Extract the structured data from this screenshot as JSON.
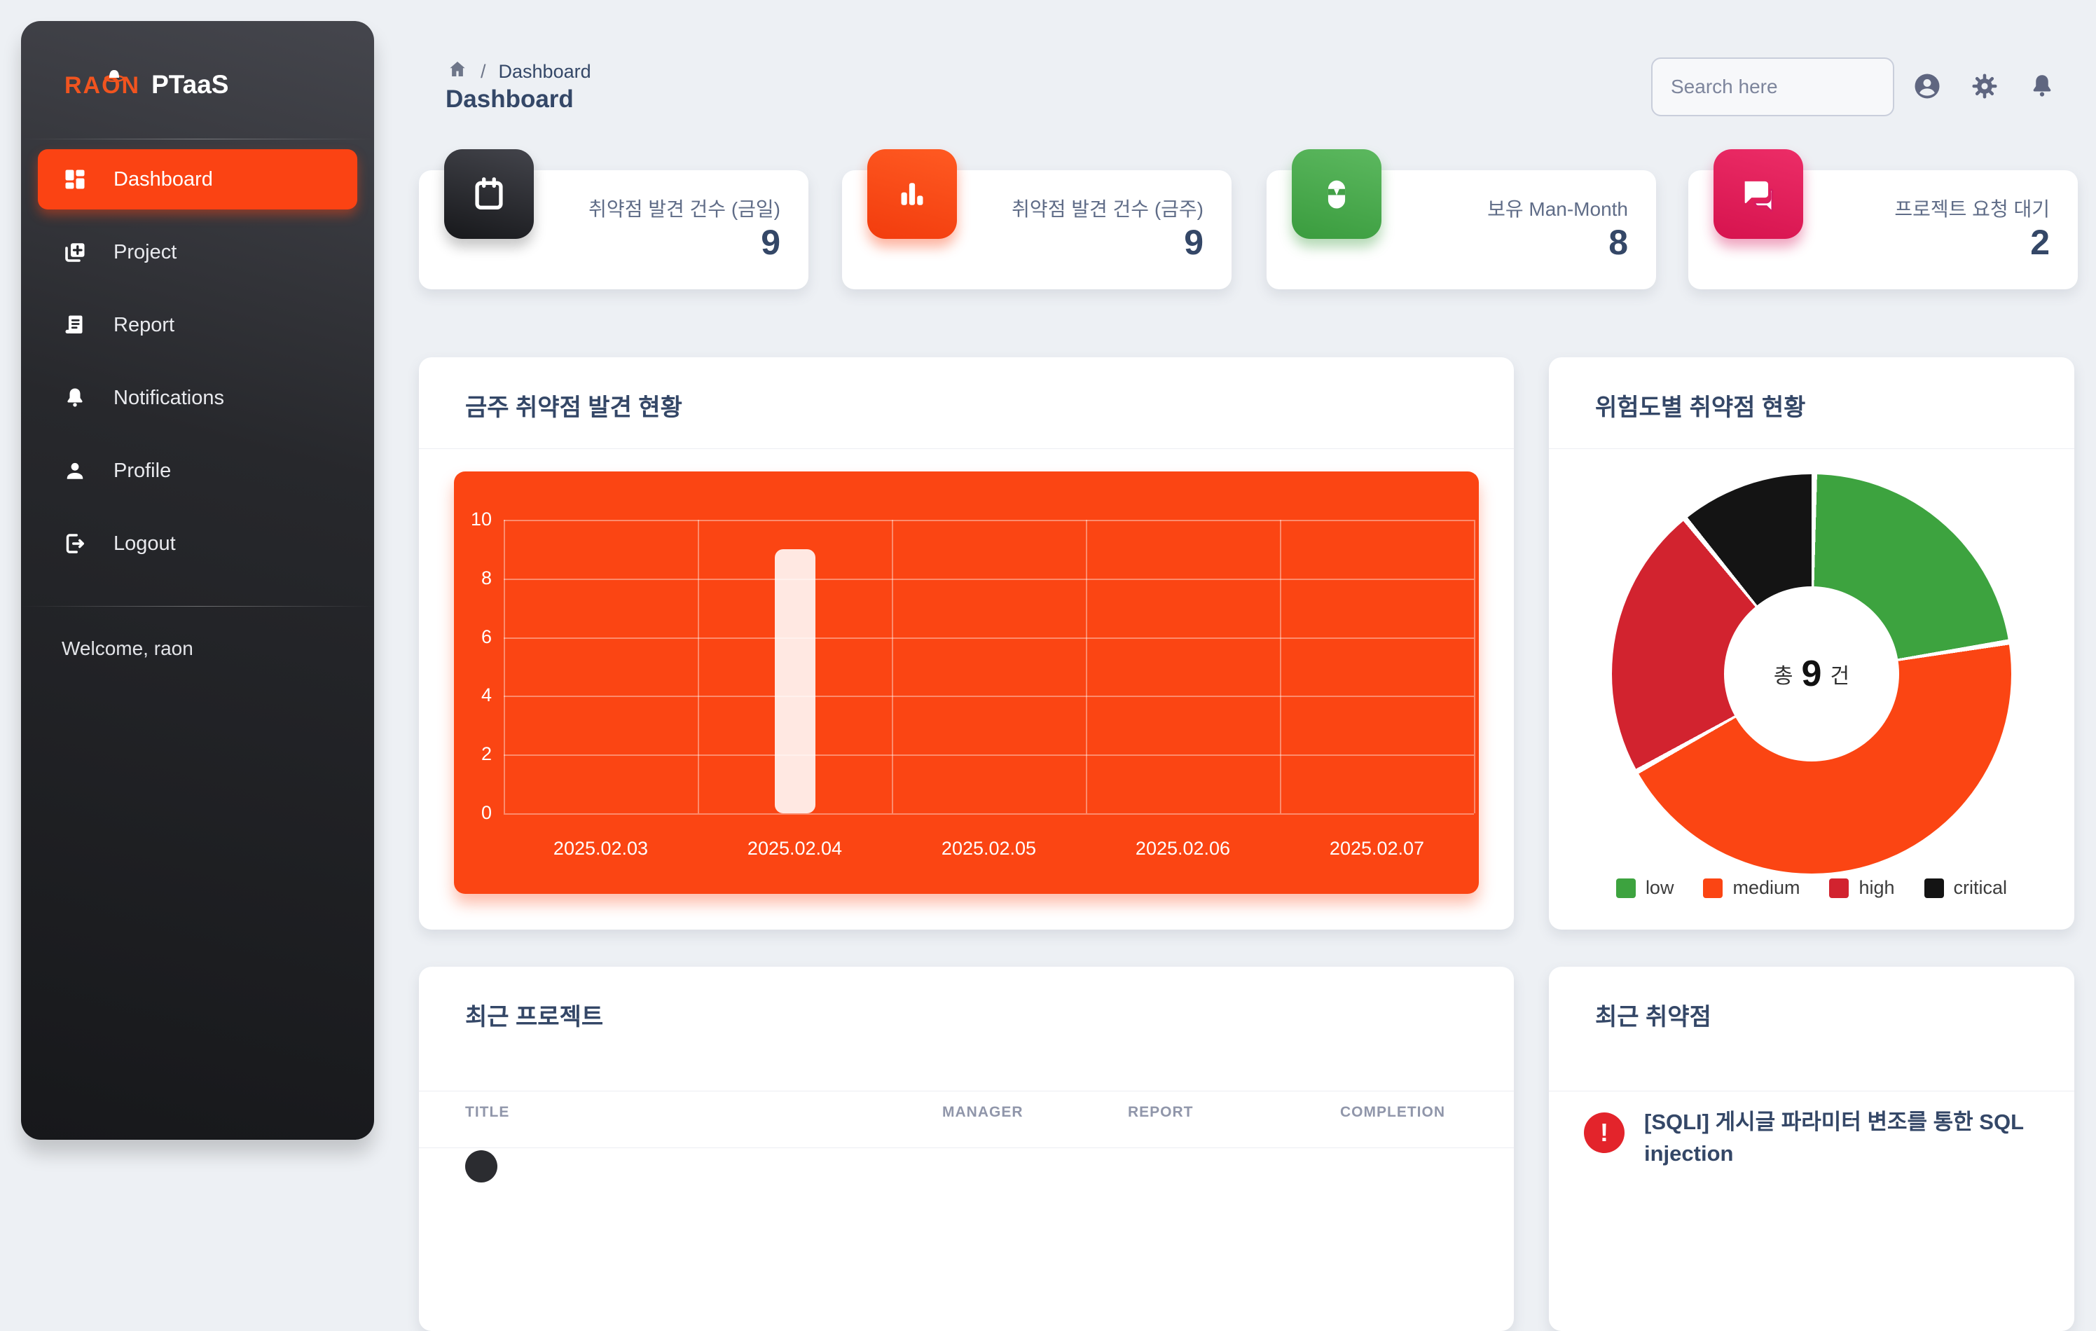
{
  "app": {
    "brand": "RAON",
    "product": "PTaaS",
    "welcome": "Welcome, raon"
  },
  "sidebar": {
    "items": [
      {
        "label": "Dashboard",
        "icon": "dashboard-icon",
        "active": true
      },
      {
        "label": "Project",
        "icon": "add-project-icon",
        "active": false
      },
      {
        "label": "Report",
        "icon": "report-icon",
        "active": false
      },
      {
        "label": "Notifications",
        "icon": "bell-icon",
        "active": false
      },
      {
        "label": "Profile",
        "icon": "person-icon",
        "active": false
      },
      {
        "label": "Logout",
        "icon": "logout-icon",
        "active": false
      }
    ]
  },
  "header": {
    "breadcrumb": {
      "home": "home-icon",
      "page": "Dashboard"
    },
    "page_title": "Dashboard",
    "search_placeholder": "Search here",
    "icons": [
      "account-icon",
      "settings-icon",
      "notifications-icon"
    ]
  },
  "stat_cards": [
    {
      "icon": "calendar-icon",
      "color": "#232429",
      "label": "취약점 발견 건수 (금일)",
      "value": "9"
    },
    {
      "icon": "bar-chart-icon",
      "color": "#fb4513",
      "label": "취약점 발견 건수 (금주)",
      "value": "9"
    },
    {
      "icon": "wallet-icon",
      "color": "#43a047",
      "label": "보유 Man-Month",
      "value": "8"
    },
    {
      "icon": "forum-icon",
      "color": "#d81b60",
      "label": "프로젝트 요청 대기",
      "value": "2"
    }
  ],
  "panels": {
    "weekly": {
      "title": "금주 취약점 발견 현황"
    },
    "severity": {
      "title": "위험도별 취약점 현황",
      "center": {
        "prefix": "총",
        "value": "9",
        "suffix": "건"
      }
    },
    "recent_projects": {
      "title": "최근 프로젝트",
      "columns": [
        "TITLE",
        "MANAGER",
        "REPORT",
        "COMPLETION"
      ]
    },
    "recent_vulns": {
      "title": "최근 취약점",
      "items": [
        {
          "severity_icon": "error-icon",
          "severity_color": "#e3242b",
          "title": "[SQLI] 게시글 파라미터 변조를 통한 SQL injection"
        }
      ]
    }
  },
  "chart_data": [
    {
      "type": "bar",
      "title": "금주 취약점 발견 현황",
      "categories": [
        "2025.02.03",
        "2025.02.04",
        "2025.02.05",
        "2025.02.06",
        "2025.02.07"
      ],
      "values": [
        0,
        9,
        0,
        0,
        0
      ],
      "xlabel": "",
      "ylabel": "",
      "ylim": [
        0,
        10
      ],
      "yticks": [
        0,
        2,
        4,
        6,
        8,
        10
      ],
      "grid": true,
      "panel_color": "#fb4513",
      "bar_color": "rgba(255,255,255,0.88)"
    },
    {
      "type": "pie",
      "title": "위험도별 취약점 현황",
      "labels": [
        "low",
        "medium",
        "high",
        "critical"
      ],
      "values": [
        2,
        4,
        2,
        1
      ],
      "colors": [
        "#3da33f",
        "#fb4513",
        "#d2232f",
        "#141414"
      ],
      "total": 9,
      "center_label": "총 9 건",
      "legend_position": "bottom",
      "donut": true
    }
  ]
}
